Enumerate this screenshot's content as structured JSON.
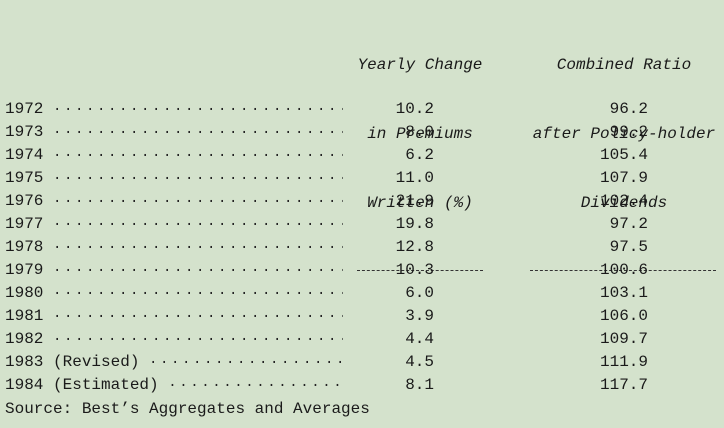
{
  "headers": {
    "premiums": {
      "line1": "Yearly Change",
      "line2": "in Premiums",
      "line3": "Written (%)",
      "rule": "-------------"
    },
    "ratio": {
      "line1": "Combined Ratio",
      "line2": "after Policy-holder",
      "line3": "Dividends",
      "rule": "-------------------"
    }
  },
  "leader_dots": "............................",
  "rows": [
    {
      "year": "1972",
      "dots": "..............................",
      "premiums_change": "10.2",
      "combined_ratio": "96.2"
    },
    {
      "year": "1973",
      "dots": "..............................",
      "premiums_change": "8.0",
      "combined_ratio": "99.2"
    },
    {
      "year": "1974",
      "dots": "..............................",
      "premiums_change": "6.2",
      "combined_ratio": "105.4"
    },
    {
      "year": "1975",
      "dots": "..............................",
      "premiums_change": "11.0",
      "combined_ratio": "107.9"
    },
    {
      "year": "1976",
      "dots": "..............................",
      "premiums_change": "21.9",
      "combined_ratio": "102.4"
    },
    {
      "year": "1977",
      "dots": "..............................",
      "premiums_change": "19.8",
      "combined_ratio": "97.2"
    },
    {
      "year": "1978",
      "dots": "..............................",
      "premiums_change": "12.8",
      "combined_ratio": "97.5"
    },
    {
      "year": "1979",
      "dots": "..............................",
      "premiums_change": "10.3",
      "combined_ratio": "100.6"
    },
    {
      "year": "1980",
      "dots": "..............................",
      "premiums_change": "6.0",
      "combined_ratio": "103.1"
    },
    {
      "year": "1981",
      "dots": "..............................",
      "premiums_change": "3.9",
      "combined_ratio": "106.0"
    },
    {
      "year": "1982",
      "dots": "..............................",
      "premiums_change": "4.4",
      "combined_ratio": "109.7"
    },
    {
      "year": "1983 (Revised)",
      "dots": ".....................",
      "premiums_change": "4.5",
      "combined_ratio": "111.9"
    },
    {
      "year": "1984 (Estimated)",
      "dots": "..................",
      "premiums_change": "8.1",
      "combined_ratio": "117.7"
    }
  ],
  "source": "Source: Best’s Aggregates and Averages"
}
